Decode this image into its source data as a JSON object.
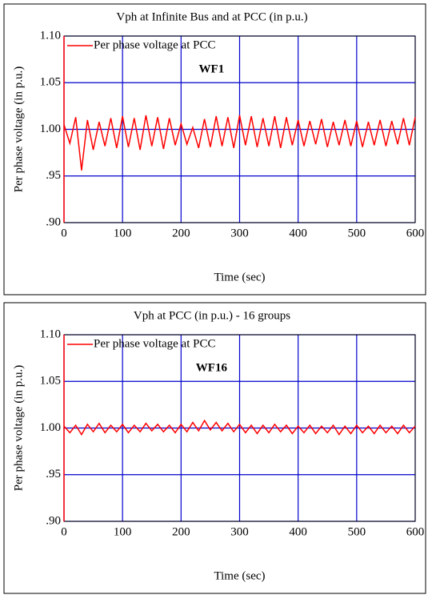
{
  "chart_data": [
    {
      "type": "line",
      "title": "Vph at Infinite Bus and at PCC (in p.u.)",
      "xlabel": "Time (sec)",
      "ylabel": "Per phase voltage (in p.u.)",
      "annotation": "WF1",
      "x": [
        0,
        10,
        20,
        30,
        40,
        50,
        60,
        70,
        80,
        90,
        100,
        110,
        120,
        130,
        140,
        150,
        160,
        170,
        180,
        190,
        200,
        210,
        220,
        230,
        240,
        250,
        260,
        270,
        280,
        290,
        300,
        310,
        320,
        330,
        340,
        350,
        360,
        370,
        380,
        390,
        400,
        410,
        420,
        430,
        440,
        450,
        460,
        470,
        480,
        490,
        500,
        510,
        520,
        530,
        540,
        550,
        560,
        570,
        580,
        590,
        600
      ],
      "series": [
        {
          "name": "Per phase voltage at PCC",
          "color": "#ff0000",
          "values": [
            1.005,
            0.985,
            1.013,
            0.956,
            1.01,
            0.978,
            1.008,
            0.982,
            1.012,
            0.98,
            1.014,
            0.981,
            1.012,
            0.978,
            1.015,
            0.982,
            1.013,
            0.979,
            1.012,
            0.983,
            1.006,
            0.984,
            1.002,
            0.98,
            1.011,
            0.981,
            1.014,
            0.982,
            1.013,
            0.98,
            1.015,
            0.983,
            1.014,
            0.981,
            1.012,
            0.982,
            1.014,
            0.98,
            1.013,
            0.983,
            1.01,
            0.982,
            1.009,
            0.984,
            1.011,
            0.981,
            1.008,
            0.983,
            1.01,
            0.982,
            1.009,
            0.981,
            1.008,
            0.983,
            1.01,
            0.982,
            1.009,
            0.984,
            1.012,
            0.983,
            1.013
          ]
        }
      ],
      "xlim": [
        0,
        600
      ],
      "ylim": [
        0.9,
        1.1
      ],
      "xticks": [
        0,
        100,
        200,
        300,
        400,
        500,
        600
      ],
      "yticks": [
        {
          "value": 0.9,
          "label": ".90"
        },
        {
          "value": 0.95,
          "label": ".95"
        },
        {
          "value": 1.0,
          "label": "1.00"
        },
        1.05,
        {
          "value": 1.1,
          "label": "1.10"
        }
      ],
      "grid": true,
      "legend": "upper left"
    },
    {
      "type": "line",
      "title": "Vph at PCC (in p.u.) - 16 groups",
      "xlabel": "Time (sec)",
      "ylabel": "Per phase voltage (in p.u.)",
      "annotation": "WF16",
      "x": [
        0,
        10,
        20,
        30,
        40,
        50,
        60,
        70,
        80,
        90,
        100,
        110,
        120,
        130,
        140,
        150,
        160,
        170,
        180,
        190,
        200,
        210,
        220,
        230,
        240,
        250,
        260,
        270,
        280,
        290,
        300,
        310,
        320,
        330,
        340,
        350,
        360,
        370,
        380,
        390,
        400,
        410,
        420,
        430,
        440,
        450,
        460,
        470,
        480,
        490,
        500,
        510,
        520,
        530,
        540,
        550,
        560,
        570,
        580,
        590,
        600
      ],
      "series": [
        {
          "name": "Per phase voltage at PCC",
          "color": "#ff0000",
          "values": [
            1.002,
            0.995,
            1.003,
            0.993,
            1.004,
            0.996,
            1.005,
            0.995,
            1.003,
            0.996,
            1.004,
            0.995,
            1.003,
            0.996,
            1.005,
            0.997,
            1.004,
            0.996,
            1.003,
            0.995,
            1.004,
            0.996,
            1.006,
            0.997,
            1.008,
            0.998,
            1.006,
            0.997,
            1.005,
            0.996,
            1.004,
            0.995,
            1.003,
            0.994,
            1.003,
            0.995,
            1.004,
            0.996,
            1.003,
            0.994,
            1.002,
            0.995,
            1.003,
            0.994,
            1.002,
            0.995,
            1.003,
            0.993,
            1.002,
            0.994,
            1.003,
            0.995,
            1.002,
            0.994,
            1.003,
            0.995,
            1.002,
            0.994,
            1.003,
            0.995,
            1.002
          ]
        }
      ],
      "xlim": [
        0,
        600
      ],
      "ylim": [
        0.9,
        1.1
      ],
      "xticks": [
        0,
        100,
        200,
        300,
        400,
        500,
        600
      ],
      "yticks": [
        {
          "value": 0.9,
          "label": ".90"
        },
        {
          "value": 0.95,
          "label": ".95"
        },
        {
          "value": 1.0,
          "label": "1.00"
        },
        1.05,
        {
          "value": 1.1,
          "label": "1.10"
        }
      ],
      "grid": true,
      "legend": "upper left"
    }
  ]
}
